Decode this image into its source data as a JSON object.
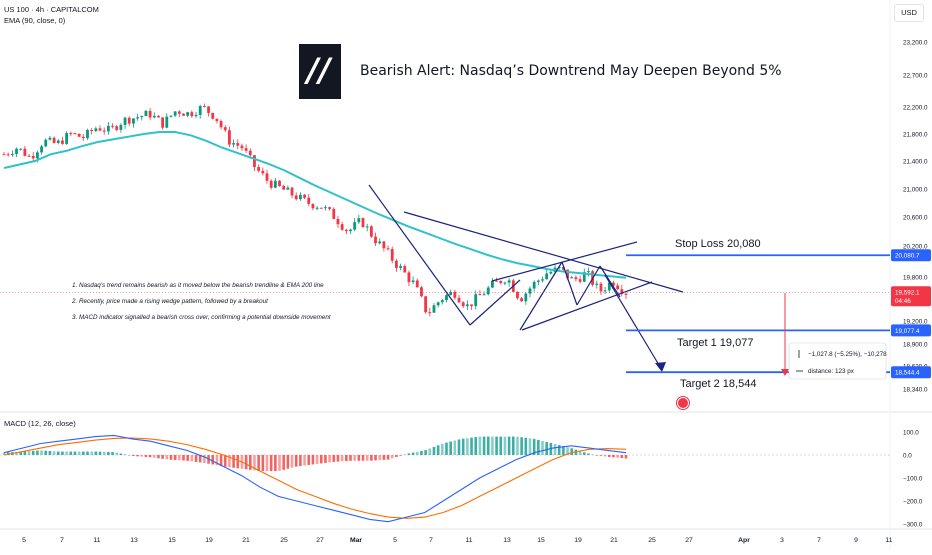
{
  "header": {
    "symbol_line": "US 100 · 4h · CAPITALCOM",
    "ema_line": "EMA (90, close, 0)",
    "currency": "USD"
  },
  "title": "Bearish Alert: Nasdaq’s Downtrend May Deepen Beyond 5%",
  "notes": [
    "1. Nasdaq’s trend remains bearish as it moved below the bearish trendline & EMA 200 line",
    "2. Recently, price made a rising wedge pattern, followed by a breakout",
    "3. MACD indicator signalled a bearish cross over, confirming a potential downside movement"
  ],
  "levels": {
    "stop_loss": "Stop Loss 20,080",
    "target1": "Target 1  19,077",
    "target2": "Target 2 18,544",
    "stop_value": 20080.7,
    "target1_value": 19077.4,
    "target2_value": 18544.4,
    "stop_tag": "20,080.7",
    "target1_tag": "19,077.4",
    "target2_tag": "18,544.4",
    "price_tag": "19,592.1",
    "countdown_tag": "04:46",
    "colors": {
      "level": "#2962ff",
      "price": "#f23645",
      "up": "#089981",
      "down": "#f23645",
      "ema": "#2fc2c9",
      "trendline": "#1a237e"
    }
  },
  "measure": {
    "line1": "−1,027.8 (−5.25%), −10,278",
    "line2": "distance: 123 px"
  },
  "macd": {
    "label": "MACD (12, 26, close)"
  },
  "chart_data": [
    {
      "type": "candlestick",
      "title": "US 100 · 4h · CAPITALCOM",
      "ylim": [
        18200,
        23400
      ],
      "y_ticks": [
        "23,200.0",
        "22,700.0",
        "22,200.0",
        "21,800.0",
        "21,400.0",
        "21,000.0",
        "20,600.0",
        "20,200.0",
        "19,800.0",
        "19,200.0",
        "18,900.0",
        "18,620.0",
        "18,340.0"
      ],
      "x_ticks": [
        "5",
        "7",
        "11",
        "13",
        "15",
        "19",
        "21",
        "25",
        "27",
        "Mar",
        "5",
        "7",
        "11",
        "13",
        "15",
        "19",
        "21",
        "25",
        "27",
        "Apr",
        "3",
        "7",
        "9",
        "11"
      ],
      "series": [
        {
          "name": "EMA (90, close, 0)",
          "type": "line"
        }
      ],
      "price_path": [
        21500,
        21600,
        21450,
        21700,
        21650,
        21800,
        21750,
        21900,
        21850,
        22000,
        22050,
        22100,
        21950,
        22150,
        22100,
        22200,
        22050,
        21700,
        21600,
        21300,
        21100,
        21000,
        20900,
        20800,
        20750,
        20600,
        20400,
        20550,
        20300,
        20100,
        19900,
        19700,
        19300,
        19500,
        19600,
        19400,
        19550,
        19700,
        19800,
        19500,
        19700,
        19850,
        19900,
        19750,
        19850,
        19600,
        19750,
        19592
      ],
      "ema_path": [
        21300,
        21350,
        21400,
        21500,
        21550,
        21620,
        21680,
        21720,
        21760,
        21800,
        21830,
        21830,
        21780,
        21700,
        21600,
        21520,
        21440,
        21360,
        21270,
        21160,
        21050,
        20950,
        20850,
        20750,
        20650,
        20560,
        20470,
        20390,
        20310,
        20230,
        20160,
        20090,
        20030,
        19980,
        19940,
        19900,
        19870,
        19850,
        19830,
        19810,
        19790
      ],
      "levels": [
        20080.7,
        19077.4,
        18544.4
      ],
      "last_price": 19592.1
    },
    {
      "type": "bar",
      "title": "MACD (12, 26, close)",
      "ylim": [
        -310,
        120
      ],
      "y_ticks": [
        "100.0",
        "0.0",
        "−100.0",
        "−200.0",
        "−300.0"
      ],
      "series": [
        {
          "name": "MACD",
          "values": [
            10,
            30,
            50,
            60,
            70,
            80,
            85,
            70,
            60,
            40,
            20,
            -10,
            -50,
            -90,
            -140,
            -180,
            -200,
            -220,
            -240,
            -260,
            -280,
            -290,
            -270,
            -250,
            -200,
            -150,
            -100,
            -60,
            -20,
            10,
            30,
            40,
            30,
            20,
            10
          ]
        },
        {
          "name": "Signal",
          "values": [
            0,
            15,
            30,
            45,
            55,
            65,
            72,
            74,
            70,
            60,
            45,
            25,
            0,
            -30,
            -70,
            -110,
            -150,
            -180,
            -210,
            -235,
            -255,
            -270,
            -275,
            -270,
            -250,
            -220,
            -180,
            -140,
            -100,
            -60,
            -20,
            10,
            25,
            28,
            25
          ]
        }
      ],
      "histogram": [
        10,
        15,
        20,
        15,
        15,
        15,
        13,
        -4,
        -10,
        -20,
        -25,
        -35,
        -50,
        -60,
        -70,
        -70,
        -50,
        -40,
        -30,
        -25,
        -25,
        -20,
        5,
        20,
        50,
        70,
        80,
        80,
        80,
        70,
        50,
        30,
        5,
        -8,
        -15
      ]
    }
  ]
}
